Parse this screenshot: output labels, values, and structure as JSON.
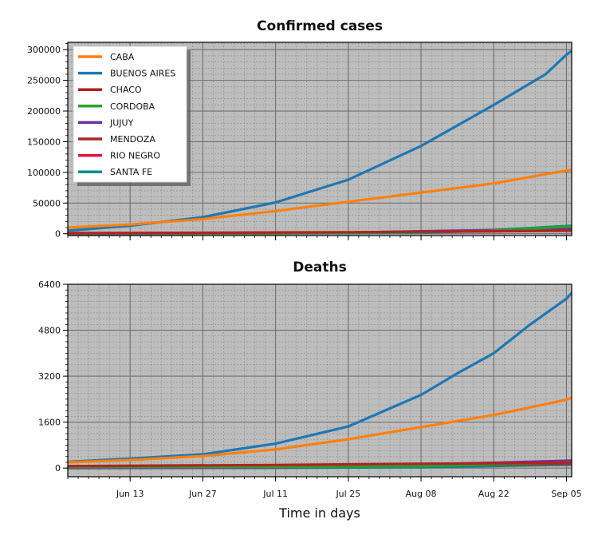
{
  "chart_data": [
    {
      "type": "line",
      "title": "Confirmed cases",
      "xlabel": "",
      "ylabel": "",
      "grid": true,
      "legend": "top-left",
      "x_start": "2020-06-01",
      "x_end": "2020-09-06",
      "x_tick_dates": [
        "2020-06-13",
        "2020-06-27",
        "2020-07-11",
        "2020-07-25",
        "2020-08-08",
        "2020-08-22",
        "2020-09-05"
      ],
      "x_tick_labels": [
        "Jun 13",
        "Jun 27",
        "Jul 11",
        "Jul 25",
        "Aug 08",
        "Aug 22",
        "Sep 05"
      ],
      "ylim": [
        -3000,
        312000
      ],
      "y_ticks": [
        0,
        50000,
        100000,
        150000,
        200000,
        250000,
        300000
      ],
      "y_tick_labels": [
        "0",
        "50000",
        "100000",
        "150000",
        "200000",
        "250000",
        "300000"
      ],
      "series": [
        {
          "name": "CABA",
          "color": "#ff7f0e",
          "points": [
            [
              "2020-06-01",
              10000
            ],
            [
              "2020-06-13",
              15000
            ],
            [
              "2020-06-27",
              24000
            ],
            [
              "2020-07-11",
              37000
            ],
            [
              "2020-07-25",
              52000
            ],
            [
              "2020-08-08",
              67000
            ],
            [
              "2020-08-22",
              82000
            ],
            [
              "2020-09-05",
              103000
            ],
            [
              "2020-09-06",
              104000
            ]
          ]
        },
        {
          "name": "BUENOS AIRES",
          "color": "#1f77b4",
          "points": [
            [
              "2020-06-01",
              5000
            ],
            [
              "2020-06-13",
              13000
            ],
            [
              "2020-06-27",
              27000
            ],
            [
              "2020-07-11",
              51000
            ],
            [
              "2020-07-25",
              88000
            ],
            [
              "2020-08-08",
              143000
            ],
            [
              "2020-08-22",
              210000
            ],
            [
              "2020-09-01",
              260000
            ],
            [
              "2020-09-05",
              292000
            ],
            [
              "2020-09-06",
              298000
            ]
          ]
        },
        {
          "name": "CHACO",
          "color": "#b22222",
          "points": [
            [
              "2020-06-01",
              1000
            ],
            [
              "2020-06-27",
              1500
            ],
            [
              "2020-07-25",
              2500
            ],
            [
              "2020-08-22",
              4000
            ],
            [
              "2020-09-06",
              5000
            ]
          ]
        },
        {
          "name": "CORDOBA",
          "color": "#2ca02c",
          "points": [
            [
              "2020-06-01",
              500
            ],
            [
              "2020-07-11",
              900
            ],
            [
              "2020-08-08",
              2500
            ],
            [
              "2020-08-22",
              5000
            ],
            [
              "2020-09-06",
              12000
            ]
          ]
        },
        {
          "name": "JUJUY",
          "color": "#7030a0",
          "points": [
            [
              "2020-06-01",
              0
            ],
            [
              "2020-07-11",
              600
            ],
            [
              "2020-07-25",
              2000
            ],
            [
              "2020-08-08",
              4000
            ],
            [
              "2020-09-06",
              8000
            ]
          ]
        },
        {
          "name": "MENDOZA",
          "color": "#a52a2a",
          "points": [
            [
              "2020-06-01",
              100
            ],
            [
              "2020-07-11",
              800
            ],
            [
              "2020-08-08",
              3000
            ],
            [
              "2020-09-06",
              9000
            ]
          ]
        },
        {
          "name": "RIO NEGRO",
          "color": "#dc143c",
          "points": [
            [
              "2020-06-01",
              500
            ],
            [
              "2020-07-11",
              1200
            ],
            [
              "2020-08-08",
              2800
            ],
            [
              "2020-09-06",
              5500
            ]
          ]
        },
        {
          "name": "SANTA FE",
          "color": "#008b8b",
          "points": [
            [
              "2020-06-01",
              0
            ],
            [
              "2020-07-11",
              500
            ],
            [
              "2020-08-08",
              1500
            ],
            [
              "2020-08-22",
              6000
            ],
            [
              "2020-09-06",
              13000
            ]
          ]
        }
      ]
    },
    {
      "type": "line",
      "title": "Deaths",
      "xlabel": "Time in days",
      "ylabel": "",
      "grid": true,
      "x_start": "2020-06-01",
      "x_end": "2020-09-06",
      "x_tick_dates": [
        "2020-06-13",
        "2020-06-27",
        "2020-07-11",
        "2020-07-25",
        "2020-08-08",
        "2020-08-22",
        "2020-09-05"
      ],
      "x_tick_labels": [
        "Jun 13",
        "Jun 27",
        "Jul 11",
        "Jul 25",
        "Aug 08",
        "Aug 22",
        "Sep 05"
      ],
      "ylim": [
        -300,
        6400
      ],
      "y_ticks": [
        0,
        1600,
        3200,
        4800,
        6400
      ],
      "y_tick_labels": [
        "0",
        "1600",
        "3200",
        "4800",
        "6400"
      ],
      "series": [
        {
          "name": "CABA",
          "color": "#ff7f0e",
          "points": [
            [
              "2020-06-01",
              200
            ],
            [
              "2020-06-13",
              280
            ],
            [
              "2020-06-27",
              420
            ],
            [
              "2020-07-11",
              650
            ],
            [
              "2020-07-25",
              1000
            ],
            [
              "2020-08-08",
              1430
            ],
            [
              "2020-08-22",
              1850
            ],
            [
              "2020-09-05",
              2380
            ],
            [
              "2020-09-06",
              2450
            ]
          ]
        },
        {
          "name": "BUENOS AIRES",
          "color": "#1f77b4",
          "points": [
            [
              "2020-06-01",
              220
            ],
            [
              "2020-06-13",
              330
            ],
            [
              "2020-06-27",
              480
            ],
            [
              "2020-07-11",
              850
            ],
            [
              "2020-07-25",
              1450
            ],
            [
              "2020-08-08",
              2550
            ],
            [
              "2020-08-15",
              3300
            ],
            [
              "2020-08-22",
              4000
            ],
            [
              "2020-08-29",
              5000
            ],
            [
              "2020-09-05",
              5900
            ],
            [
              "2020-09-06",
              6100
            ]
          ]
        },
        {
          "name": "CHACO",
          "color": "#b22222",
          "points": [
            [
              "2020-06-01",
              70
            ],
            [
              "2020-07-11",
              110
            ],
            [
              "2020-08-08",
              150
            ],
            [
              "2020-09-06",
              190
            ]
          ]
        },
        {
          "name": "CORDOBA",
          "color": "#2ca02c",
          "points": [
            [
              "2020-06-01",
              30
            ],
            [
              "2020-07-11",
              40
            ],
            [
              "2020-08-08",
              70
            ],
            [
              "2020-09-06",
              200
            ]
          ]
        },
        {
          "name": "JUJUY",
          "color": "#7030a0",
          "points": [
            [
              "2020-06-01",
              0
            ],
            [
              "2020-07-11",
              20
            ],
            [
              "2020-08-08",
              120
            ],
            [
              "2020-09-06",
              260
            ]
          ]
        },
        {
          "name": "MENDOZA",
          "color": "#a52a2a",
          "points": [
            [
              "2020-06-01",
              10
            ],
            [
              "2020-07-11",
              30
            ],
            [
              "2020-08-08",
              80
            ],
            [
              "2020-09-06",
              160
            ]
          ]
        },
        {
          "name": "RIO NEGRO",
          "color": "#dc143c",
          "points": [
            [
              "2020-06-01",
              30
            ],
            [
              "2020-07-11",
              60
            ],
            [
              "2020-08-08",
              100
            ],
            [
              "2020-09-06",
              150
            ]
          ]
        },
        {
          "name": "SANTA FE",
          "color": "#008b8b",
          "points": [
            [
              "2020-06-01",
              5
            ],
            [
              "2020-07-11",
              10
            ],
            [
              "2020-08-08",
              30
            ],
            [
              "2020-09-06",
              120
            ]
          ]
        }
      ]
    }
  ]
}
